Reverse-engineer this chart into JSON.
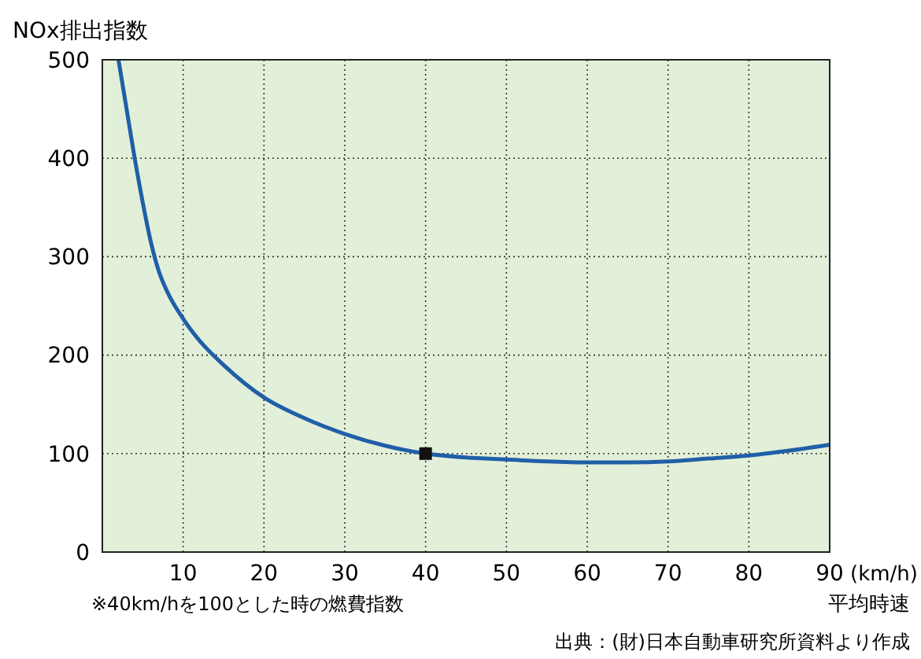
{
  "chart_data": {
    "type": "line",
    "ylabel": "NOx排出指数",
    "xlabel": "平均時速",
    "annotations": [
      "(km/h)",
      "※40km/hを100とした時の燃費指数",
      "出典：(財)日本自動車研究所資料より作成"
    ],
    "xlim": [
      0,
      90
    ],
    "xticks": [
      10,
      20,
      30,
      40,
      50,
      60,
      70,
      80,
      90
    ],
    "ylim": [
      0,
      500
    ],
    "yticks": [
      0,
      100,
      200,
      300,
      400,
      500
    ],
    "grid": true,
    "series": [
      {
        "color": "#1f5fa8",
        "marker": "none",
        "x": [
          2,
          3,
          4,
          5,
          6,
          7,
          8,
          10,
          12,
          15,
          20,
          25,
          30,
          35,
          40,
          45,
          50,
          55,
          60,
          65,
          70,
          75,
          80,
          85,
          90
        ],
        "values": [
          500,
          450,
          400,
          355,
          315,
          285,
          265,
          237,
          215,
          190,
          157,
          136,
          120,
          108,
          100,
          96,
          94,
          92,
          91,
          91,
          92,
          95,
          98,
          103,
          109
        ]
      },
      {
        "type": "scatter",
        "color": "#111111",
        "marker": "square",
        "x": [
          40
        ],
        "values": [
          100
        ]
      }
    ]
  }
}
